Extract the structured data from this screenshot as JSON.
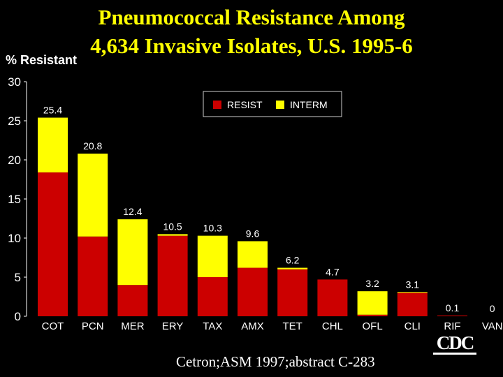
{
  "title_line1": "Pneumococcal Resistance Among",
  "title_line2": "4,634 Invasive Isolates, U.S. 1995-6",
  "citation": "Cetron;ASM 1997;abstract C-283",
  "logo_text": "CDC",
  "colors": {
    "background": "#000000",
    "title": "#ffff00",
    "text": "#ffffff",
    "resist": "#cc0000",
    "interm": "#ffff00"
  },
  "chart_data": {
    "type": "bar",
    "stacked": true,
    "title": "Pneumococcal Resistance Among 4,634 Invasive Isolates, U.S. 1995-6",
    "ylabel": "% Resistant",
    "xlabel": "",
    "ylim": [
      0,
      30
    ],
    "yticks": [
      0,
      5,
      10,
      15,
      20,
      25,
      30
    ],
    "grid": false,
    "legend_position": "top-right",
    "categories": [
      "COT",
      "PCN",
      "MER",
      "ERY",
      "TAX",
      "AMX",
      "TET",
      "CHL",
      "OFL",
      "CLI",
      "RIF",
      "VAN"
    ],
    "series": [
      {
        "name": "RESIST",
        "color": "#cc0000",
        "values": [
          18.4,
          10.2,
          4.0,
          10.3,
          5.0,
          6.2,
          6.0,
          4.7,
          0.2,
          3.0,
          0.1,
          0
        ]
      },
      {
        "name": "INTERM",
        "color": "#ffff00",
        "values": [
          7.0,
          10.6,
          8.4,
          0.2,
          5.3,
          3.4,
          0.2,
          0.0,
          3.0,
          0.1,
          0.0,
          0
        ]
      }
    ],
    "totals": [
      25.4,
      20.8,
      12.4,
      10.5,
      10.3,
      9.6,
      6.2,
      4.7,
      3.2,
      3.1,
      0.1,
      0
    ],
    "total_labels": [
      "25.4",
      "20.8",
      "12.4",
      "10.5",
      "10.3",
      "9.6",
      "6.2",
      "4.7",
      "3.2",
      "3.1",
      "0.1",
      "0"
    ]
  }
}
